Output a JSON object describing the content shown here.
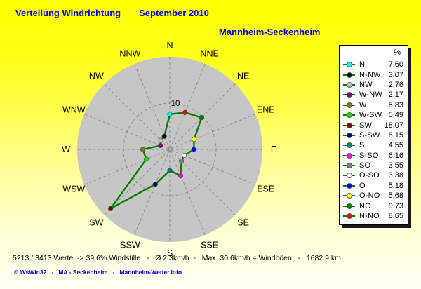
{
  "header": {
    "title": "Verteilung Windrichtung",
    "period": "September 2010",
    "station": "Mannheim-Seckenheim"
  },
  "legend": {
    "header": "%"
  },
  "chart_data": {
    "type": "radar",
    "subtype": "wind-rose",
    "title": "Verteilung Windrichtung September 2010",
    "station": "Mannheim-Seckenheim",
    "unit": "%",
    "axis_max": 20,
    "ring_value": 10,
    "ring_label": "10",
    "grid": "dashed",
    "legend_position": "right",
    "line_color": "#008000",
    "compass_labels": [
      "N",
      "NNE",
      "NE",
      "ENE",
      "E",
      "ESE",
      "SE",
      "SSE",
      "S",
      "SSW",
      "SW",
      "WSW",
      "W",
      "WNW",
      "NW",
      "NNW"
    ],
    "series": [
      {
        "dir": "N",
        "value": 7.6,
        "value_label": "7.60",
        "angle": 0,
        "color": "#00FFFF"
      },
      {
        "dir": "N-NW",
        "value": 3.07,
        "value_label": "3.07",
        "angle": 337.5,
        "color": "#000000"
      },
      {
        "dir": "NW",
        "value": 2.76,
        "value_label": "2.76",
        "angle": 315,
        "color": "#C0C0C0"
      },
      {
        "dir": "W-NW",
        "value": 2.17,
        "value_label": "2.17",
        "angle": 292.5,
        "color": "#800080"
      },
      {
        "dir": "W",
        "value": 5.83,
        "value_label": "5.83",
        "angle": 270,
        "color": "#808000"
      },
      {
        "dir": "W-SW",
        "value": 5.49,
        "value_label": "5.49",
        "angle": 247.5,
        "color": "#00EE00"
      },
      {
        "dir": "SW",
        "value": 18.07,
        "value_label": "18.07",
        "angle": 225,
        "color": "#800000"
      },
      {
        "dir": "S-SW",
        "value": 8.15,
        "value_label": "8.15",
        "angle": 202.5,
        "color": "#000080"
      },
      {
        "dir": "S",
        "value": 4.55,
        "value_label": "4.55",
        "angle": 180,
        "color": "#008080"
      },
      {
        "dir": "S-SO",
        "value": 6.16,
        "value_label": "6.16",
        "angle": 157.5,
        "color": "#FF00FF"
      },
      {
        "dir": "SO",
        "value": 3.55,
        "value_label": "3.55",
        "angle": 135,
        "color": "#808080"
      },
      {
        "dir": "O-SO",
        "value": 3.38,
        "value_label": "3.38",
        "angle": 112.5,
        "color": "#FFFFFF"
      },
      {
        "dir": "O",
        "value": 5.18,
        "value_label": "5.18",
        "angle": 90,
        "color": "#0000FF"
      },
      {
        "dir": "O-NO",
        "value": 5.68,
        "value_label": "5.68",
        "angle": 67.5,
        "color": "#FFFF00"
      },
      {
        "dir": "NO",
        "value": 9.73,
        "value_label": "9.73",
        "angle": 45,
        "color": "#008000"
      },
      {
        "dir": "N-NO",
        "value": 8.65,
        "value_label": "8.65",
        "angle": 22.5,
        "color": "#FF0000"
      }
    ]
  },
  "status_line": "5213 / 3413 Werte  -> 39.6% Windstille   -   Ø 2.3km/h  -   Max. 30.6km/h = Windböen   -   1682.9 km",
  "footer": "© WsWin32   -   MA - Seckenheim   -   Mannheim-Wetter.info"
}
